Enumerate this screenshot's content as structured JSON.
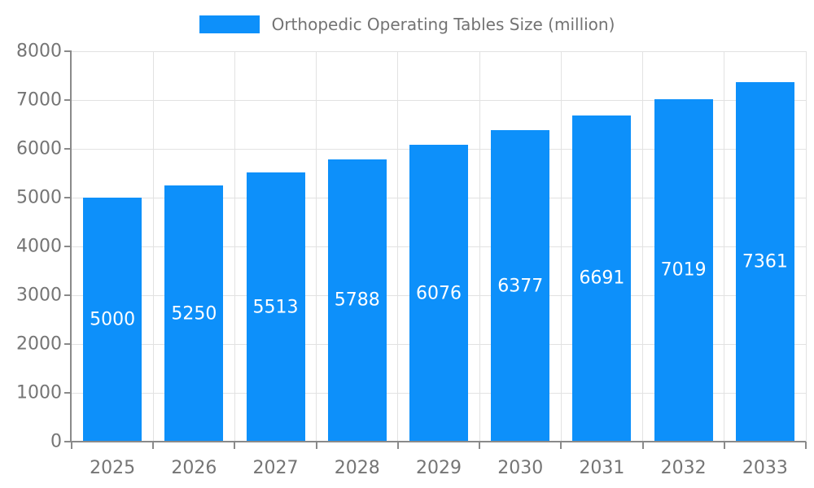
{
  "legend": {
    "label": "Orthopedic Operating Tables Size (million)"
  },
  "colors": {
    "bar": "#0d90fa",
    "grid": "#e2e2e2",
    "axis": "#8a8a8a",
    "tick_label": "#757575",
    "bar_label": "#ffffff",
    "legend_text": "#737373",
    "background": "#ffffff"
  },
  "chart_data": {
    "type": "bar",
    "title": "Orthopedic Operating Tables Size (million)",
    "categories": [
      "2025",
      "2026",
      "2027",
      "2028",
      "2029",
      "2030",
      "2031",
      "2032",
      "2033"
    ],
    "series": [
      {
        "name": "Orthopedic Operating Tables Size (million)",
        "values": [
          5000,
          5250,
          5513,
          5788,
          6076,
          6377,
          6691,
          7019,
          7361
        ]
      }
    ],
    "value_labels": [
      "5000",
      "5250",
      "5513",
      "5788",
      "6076",
      "6377",
      "6691",
      "7019",
      "7361"
    ],
    "xlabel": "",
    "ylabel": "",
    "ylim": [
      0,
      8000
    ],
    "ytick_step": 1000,
    "yticks": [
      0,
      1000,
      2000,
      3000,
      4000,
      5000,
      6000,
      7000,
      8000
    ],
    "grid": true,
    "legend_position": "top-center",
    "bar_label_position": "inside-center"
  }
}
